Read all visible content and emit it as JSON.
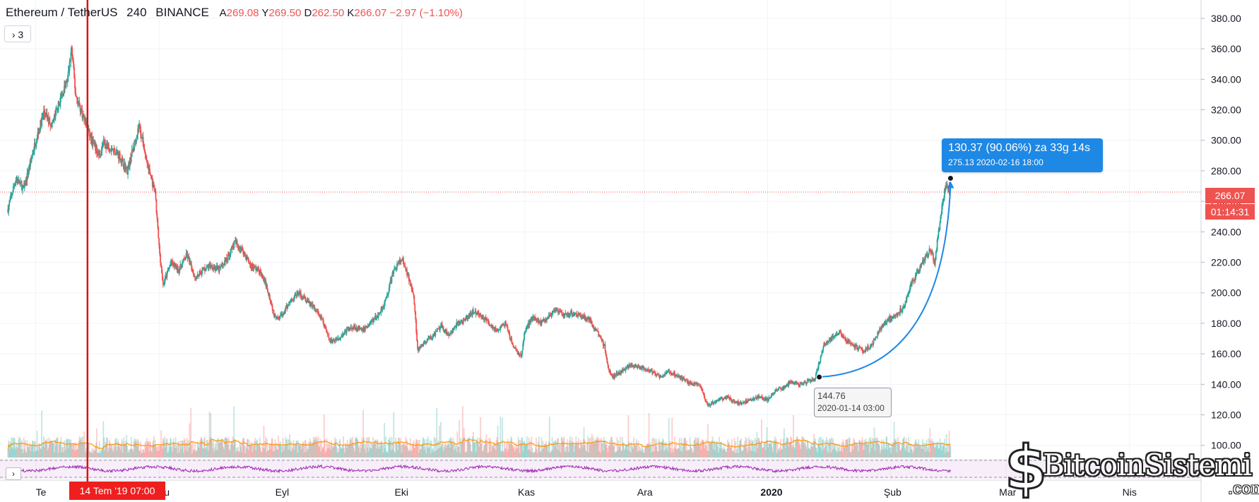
{
  "header": {
    "symbol": "Ethereum / TetherUS",
    "interval": "240",
    "exchange": "BINANCE",
    "open_label": "A",
    "open": "269.08",
    "high_label": "Y",
    "high": "269.50",
    "low_label": "D",
    "low": "262.50",
    "close_label": "K",
    "close": "266.07",
    "change": "−2.97 (−1.10%)"
  },
  "indicators_toggle": "3",
  "price_label": {
    "price": "266.07",
    "countdown": "01:14:31"
  },
  "crosshair_date": "14 Tem '19   07:00",
  "measure": {
    "main": "130.37 (90.06%) za 33g 14s",
    "detail": "275.13  2020-02-16  18:00"
  },
  "low_point": {
    "price": "144.76",
    "time": "2020-01-14 03:00"
  },
  "watermark": {
    "text": "BitcoinSistemi",
    "sub": ".com"
  },
  "colors": {
    "up": "#26a69a",
    "down": "#ef5350",
    "measure": "#1e88e5",
    "volume_ma": "#ff9800",
    "rsi": "#9c27b0",
    "crosshair": "#e01010"
  },
  "chart_data": {
    "type": "candlestick",
    "title": "Ethereum / TetherUS 240 BINANCE",
    "y_ticks": [
      100,
      120,
      140,
      160,
      180,
      200,
      220,
      240,
      260,
      280,
      300,
      320,
      340,
      360,
      380
    ],
    "ylim": [
      92,
      392
    ],
    "x_ticks": [
      "Te",
      "Ağu",
      "Eyl",
      "Eki",
      "Kas",
      "Ara",
      "2020",
      "Şub",
      "Mar",
      "Nis"
    ],
    "series": [
      {
        "name": "price path",
        "points": [
          [
            "2019-06-24",
            255
          ],
          [
            "2019-06-26",
            275
          ],
          [
            "2019-06-28",
            268
          ],
          [
            "2019-07-01",
            300
          ],
          [
            "2019-07-03",
            318
          ],
          [
            "2019-07-05",
            310
          ],
          [
            "2019-07-07",
            325
          ],
          [
            "2019-07-09",
            340
          ],
          [
            "2019-07-10",
            360
          ],
          [
            "2019-07-11",
            330
          ],
          [
            "2019-07-13",
            315
          ],
          [
            "2019-07-15",
            300
          ],
          [
            "2019-07-17",
            290
          ],
          [
            "2019-07-18",
            298
          ],
          [
            "2019-07-20",
            295
          ],
          [
            "2019-07-22",
            290
          ],
          [
            "2019-07-24",
            280
          ],
          [
            "2019-07-26",
            300
          ],
          [
            "2019-07-27",
            310
          ],
          [
            "2019-07-29",
            285
          ],
          [
            "2019-07-31",
            265
          ],
          [
            "2019-08-01",
            230
          ],
          [
            "2019-08-02",
            205
          ],
          [
            "2019-08-04",
            220
          ],
          [
            "2019-08-06",
            215
          ],
          [
            "2019-08-08",
            225
          ],
          [
            "2019-08-10",
            210
          ],
          [
            "2019-08-12",
            215
          ],
          [
            "2019-08-14",
            218
          ],
          [
            "2019-08-16",
            215
          ],
          [
            "2019-08-18",
            222
          ],
          [
            "2019-08-20",
            233
          ],
          [
            "2019-08-22",
            228
          ],
          [
            "2019-08-24",
            218
          ],
          [
            "2019-08-26",
            215
          ],
          [
            "2019-08-28",
            205
          ],
          [
            "2019-08-30",
            185
          ],
          [
            "2019-09-01",
            185
          ],
          [
            "2019-09-03",
            195
          ],
          [
            "2019-09-05",
            200
          ],
          [
            "2019-09-07",
            195
          ],
          [
            "2019-09-09",
            190
          ],
          [
            "2019-09-11",
            182
          ],
          [
            "2019-09-13",
            168
          ],
          [
            "2019-09-15",
            170
          ],
          [
            "2019-09-17",
            175
          ],
          [
            "2019-09-19",
            178
          ],
          [
            "2019-09-21",
            175
          ],
          [
            "2019-09-23",
            180
          ],
          [
            "2019-09-25",
            185
          ],
          [
            "2019-09-27",
            195
          ],
          [
            "2019-09-29",
            215
          ],
          [
            "2019-10-01",
            222
          ],
          [
            "2019-10-02",
            215
          ],
          [
            "2019-10-04",
            200
          ],
          [
            "2019-10-05",
            162
          ],
          [
            "2019-10-07",
            168
          ],
          [
            "2019-10-09",
            172
          ],
          [
            "2019-10-11",
            178
          ],
          [
            "2019-10-13",
            172
          ],
          [
            "2019-10-15",
            180
          ],
          [
            "2019-10-17",
            182
          ],
          [
            "2019-10-19",
            188
          ],
          [
            "2019-10-21",
            185
          ],
          [
            "2019-10-23",
            180
          ],
          [
            "2019-10-25",
            175
          ],
          [
            "2019-10-27",
            180
          ],
          [
            "2019-10-29",
            165
          ],
          [
            "2019-10-31",
            158
          ],
          [
            "2019-11-01",
            175
          ],
          [
            "2019-11-03",
            185
          ],
          [
            "2019-11-05",
            180
          ],
          [
            "2019-11-07",
            185
          ],
          [
            "2019-11-09",
            188
          ],
          [
            "2019-11-11",
            185
          ],
          [
            "2019-11-13",
            187
          ],
          [
            "2019-11-15",
            185
          ],
          [
            "2019-11-17",
            183
          ],
          [
            "2019-11-19",
            175
          ],
          [
            "2019-11-21",
            165
          ],
          [
            "2019-11-22",
            150
          ],
          [
            "2019-11-23",
            145
          ],
          [
            "2019-11-25",
            148
          ],
          [
            "2019-11-27",
            152
          ],
          [
            "2019-11-29",
            152
          ],
          [
            "2019-12-01",
            150
          ],
          [
            "2019-12-03",
            148
          ],
          [
            "2019-12-05",
            145
          ],
          [
            "2019-12-07",
            148
          ],
          [
            "2019-12-09",
            146
          ],
          [
            "2019-12-11",
            143
          ],
          [
            "2019-12-13",
            140
          ],
          [
            "2019-12-15",
            140
          ],
          [
            "2019-12-17",
            125
          ],
          [
            "2019-12-18",
            128
          ],
          [
            "2019-12-20",
            130
          ],
          [
            "2019-12-22",
            132
          ],
          [
            "2019-12-24",
            128
          ],
          [
            "2019-12-26",
            128
          ],
          [
            "2019-12-28",
            130
          ],
          [
            "2019-12-30",
            132
          ],
          [
            "2020-01-01",
            130
          ],
          [
            "2020-01-03",
            136
          ],
          [
            "2020-01-05",
            138
          ],
          [
            "2020-01-07",
            142
          ],
          [
            "2020-01-09",
            140
          ],
          [
            "2020-01-11",
            142
          ],
          [
            "2020-01-13",
            144
          ],
          [
            "2020-01-15",
            165
          ],
          [
            "2020-01-17",
            170
          ],
          [
            "2020-01-19",
            175
          ],
          [
            "2020-01-21",
            168
          ],
          [
            "2020-01-23",
            165
          ],
          [
            "2020-01-25",
            162
          ],
          [
            "2020-01-27",
            165
          ],
          [
            "2020-01-29",
            175
          ],
          [
            "2020-01-31",
            182
          ],
          [
            "2020-02-02",
            185
          ],
          [
            "2020-02-04",
            190
          ],
          [
            "2020-02-06",
            205
          ],
          [
            "2020-02-08",
            215
          ],
          [
            "2020-02-10",
            225
          ],
          [
            "2020-02-11",
            228
          ],
          [
            "2020-02-12",
            220
          ],
          [
            "2020-02-13",
            240
          ],
          [
            "2020-02-14",
            260
          ],
          [
            "2020-02-15",
            272
          ],
          [
            "2020-02-16",
            266
          ]
        ]
      }
    ],
    "current_price": 266.07,
    "measure_from": {
      "time": "2020-01-14",
      "price": 144.76
    },
    "measure_to": {
      "time": "2020-02-16",
      "price": 275.13
    },
    "crosshair_time": "2019-07-14",
    "grid": true
  }
}
